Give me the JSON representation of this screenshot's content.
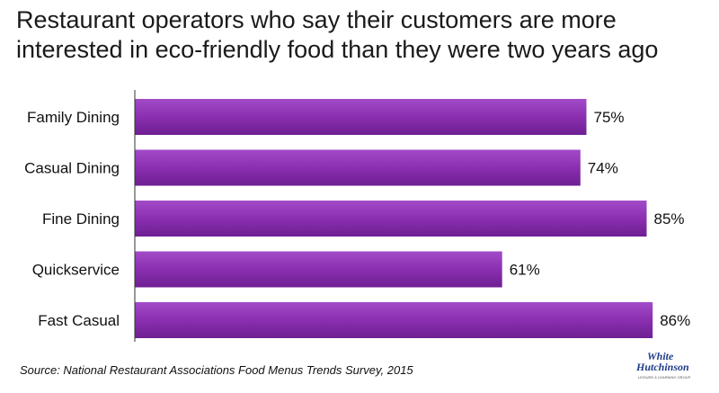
{
  "chart_data": {
    "type": "bar",
    "orientation": "horizontal",
    "title": "Restaurant operators who say their customers are more interested in eco-friendly food than they were two years ago",
    "categories": [
      "Family Dining",
      "Casual Dining",
      "Fine Dining",
      "Quickservice",
      "Fast Casual"
    ],
    "values": [
      75,
      74,
      85,
      61,
      86
    ],
    "value_labels": [
      "75%",
      "74%",
      "85%",
      "61%",
      "86%"
    ],
    "unit": "%",
    "xlim": [
      0,
      100
    ],
    "grid": false,
    "legend": "none",
    "bar_color": "#8a2fb0"
  },
  "source": "Source: National Restaurant Associations Food Menus Trends Survey, 2015",
  "logo": {
    "line1": "White",
    "line2": "Hutchinson",
    "tagline": "LEISURE & LEARNING GROUP"
  }
}
